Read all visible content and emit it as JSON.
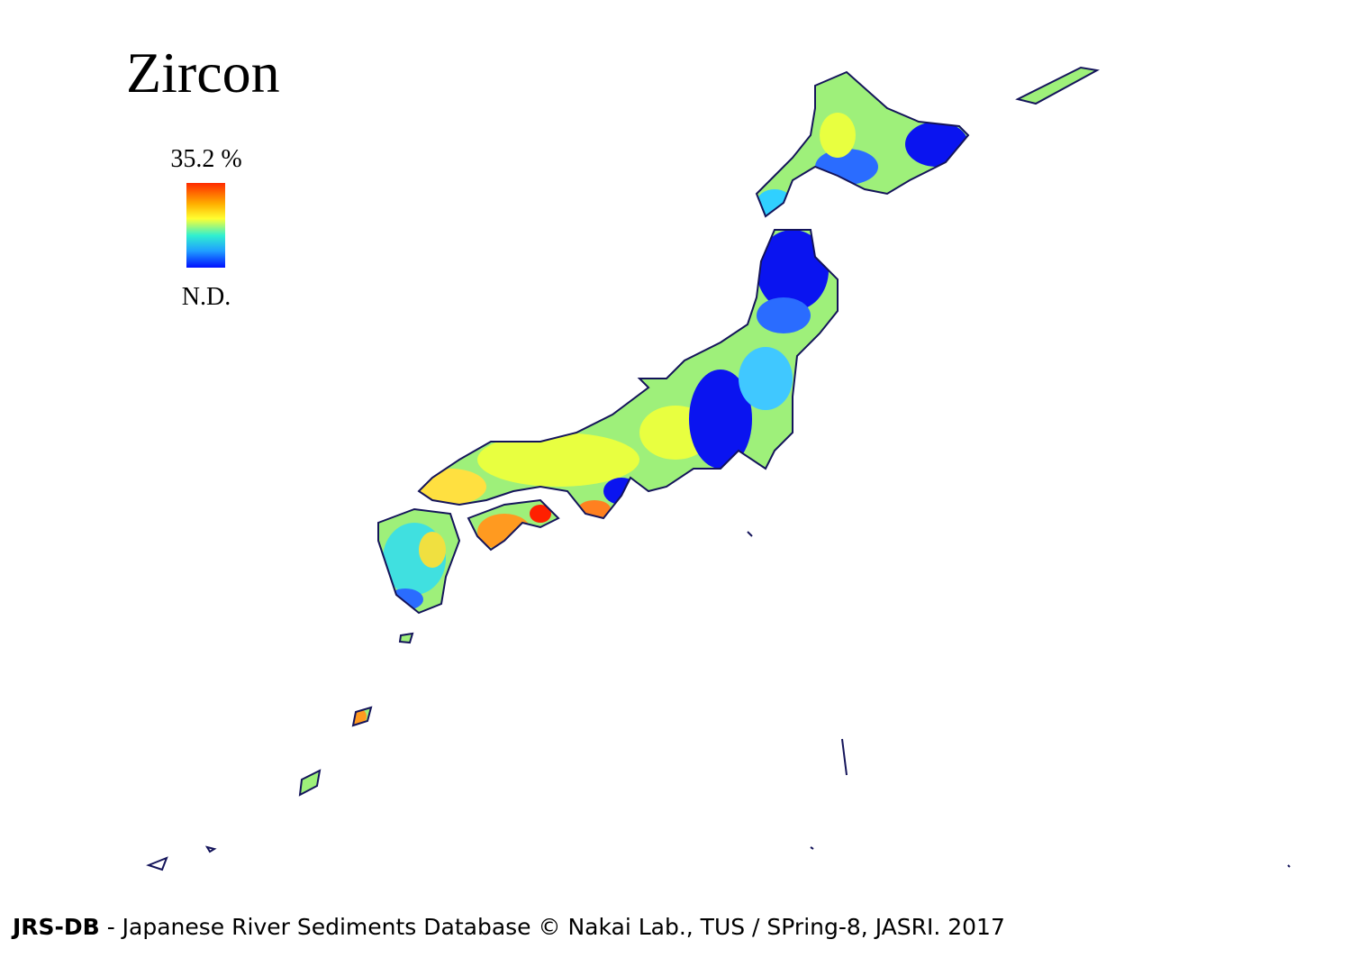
{
  "title": "Zircon",
  "legend": {
    "max_label": "35.2 %",
    "min_label": "N.D."
  },
  "footer": {
    "brand": "JRS-DB",
    "text": " - Japanese River Sediments Database © Nakai Lab., TUS / SPring-8, JASRI. 2017"
  }
}
